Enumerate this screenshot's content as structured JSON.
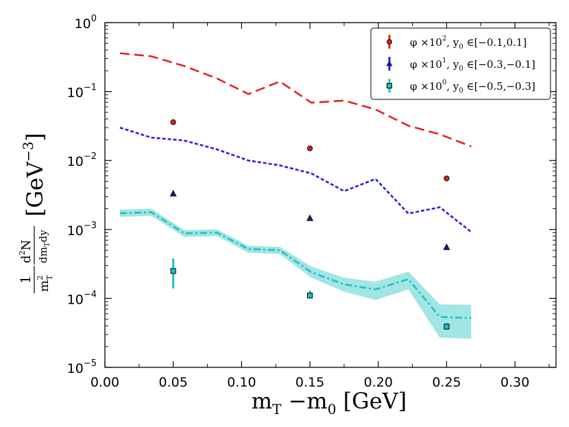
{
  "chart_data": {
    "type": "scatter",
    "scale": {
      "x": "linear",
      "y": "log"
    },
    "xlim": [
      0.0,
      0.33
    ],
    "ylim": [
      1e-05,
      1
    ],
    "xticks": [
      {
        "v": 0.0,
        "label": "0.00"
      },
      {
        "v": 0.05,
        "label": "0.05"
      },
      {
        "v": 0.1,
        "label": "0.10"
      },
      {
        "v": 0.15,
        "label": "0.15"
      },
      {
        "v": 0.2,
        "label": "0.20"
      },
      {
        "v": 0.25,
        "label": "0.25"
      },
      {
        "v": 0.3,
        "label": "0.30"
      }
    ],
    "yticks": [
      {
        "v": 1,
        "base": "10",
        "exp": "0"
      },
      {
        "v": 0.1,
        "base": "10",
        "exp": "−1"
      },
      {
        "v": 0.01,
        "base": "10",
        "exp": "−2"
      },
      {
        "v": 0.001,
        "base": "10",
        "exp": "−3"
      },
      {
        "v": 0.0001,
        "base": "10",
        "exp": "−4"
      },
      {
        "v": 1e-05,
        "base": "10",
        "exp": "−5"
      }
    ],
    "xlabel": {
      "main": "m",
      "sub1": "T",
      "mid": " −m",
      "sub2": "0",
      "unit": "  [GeV]"
    },
    "ylabel": {
      "num": "d",
      "numsup": "2",
      "numrest": "N",
      "den1": "m",
      "densub": "T",
      "densup": "2",
      "unit": "[GeV",
      "unitsup": "−3",
      "unitclose": "]"
    },
    "legend": {
      "position": "top-right",
      "entries": [
        {
          "text": "φ ×10",
          "sup": "2",
          "tail": ", y",
          "tsub": "0",
          "range": " ∈[−0.1,0.1]"
        },
        {
          "text": "φ ×10",
          "sup": "1",
          "tail": ", y",
          "tsub": "0",
          "range": " ∈[−0.3,−0.1]"
        },
        {
          "text": "φ ×10",
          "sup": "0",
          "tail": ", y",
          "tsub": "0",
          "range": " ∈[−0.5,−0.3]"
        }
      ]
    },
    "series": [
      {
        "color": "#e8201b",
        "marker": "circle",
        "line_style": "dashed",
        "points": [
          {
            "x": 0.05,
            "y": 0.036,
            "err": 0.0
          },
          {
            "x": 0.15,
            "y": 0.015,
            "err": 0.0
          },
          {
            "x": 0.25,
            "y": 0.0055,
            "err": 0.0
          }
        ],
        "curve": [
          [
            0.011,
            0.36
          ],
          [
            0.034,
            0.325
          ],
          [
            0.058,
            0.235
          ],
          [
            0.082,
            0.155
          ],
          [
            0.105,
            0.092
          ],
          [
            0.128,
            0.14
          ],
          [
            0.151,
            0.069
          ],
          [
            0.175,
            0.074
          ],
          [
            0.198,
            0.055
          ],
          [
            0.222,
            0.032
          ],
          [
            0.245,
            0.024
          ],
          [
            0.268,
            0.016
          ]
        ]
      },
      {
        "color": "#2222dd",
        "marker": "triangle",
        "line_style": "dotted",
        "points": [
          {
            "x": 0.05,
            "y": 0.0033,
            "err": 0.0
          },
          {
            "x": 0.15,
            "y": 0.00145,
            "err": 0.0
          },
          {
            "x": 0.25,
            "y": 0.00055,
            "err": 0.0
          }
        ],
        "curve": [
          [
            0.011,
            0.03
          ],
          [
            0.034,
            0.0215
          ],
          [
            0.058,
            0.0195
          ],
          [
            0.082,
            0.0145
          ],
          [
            0.105,
            0.01
          ],
          [
            0.128,
            0.0085
          ],
          [
            0.151,
            0.0065
          ],
          [
            0.175,
            0.0036
          ],
          [
            0.198,
            0.0054
          ],
          [
            0.222,
            0.0017
          ],
          [
            0.245,
            0.0021
          ],
          [
            0.268,
            0.00092
          ]
        ]
      },
      {
        "color": "#20c0c0",
        "marker": "square",
        "line_style": "dashdot",
        "points": [
          {
            "x": 0.05,
            "y": 0.00025,
            "lo": 0.00014,
            "hi": 0.00038
          },
          {
            "x": 0.15,
            "y": 0.00011,
            "lo": 0.0001,
            "hi": 0.00013
          },
          {
            "x": 0.25,
            "y": 3.9e-05,
            "lo": 3.5e-05,
            "hi": 4.4e-05
          }
        ],
        "curve": [
          [
            0.011,
            0.00172
          ],
          [
            0.034,
            0.00178
          ],
          [
            0.058,
            0.00088
          ],
          [
            0.082,
            0.0009
          ],
          [
            0.105,
            0.00052
          ],
          [
            0.128,
            0.0005
          ],
          [
            0.151,
            0.00024
          ],
          [
            0.175,
            0.00016
          ],
          [
            0.198,
            0.000135
          ],
          [
            0.222,
            0.00019
          ],
          [
            0.245,
            5.4e-05
          ],
          [
            0.268,
            5.2e-05
          ]
        ],
        "band_lo": [
          0.00152,
          0.00158,
          0.00078,
          0.0008,
          0.00046,
          0.00044,
          0.0002,
          0.000125,
          9.5e-05,
          0.000135,
          2.7e-05,
          2.6e-05
        ],
        "band_hi": [
          0.00195,
          0.002,
          0.00098,
          0.001,
          0.00058,
          0.00056,
          0.00029,
          0.0002,
          0.000175,
          0.000245,
          8.2e-05,
          8.1e-05
        ]
      }
    ]
  }
}
